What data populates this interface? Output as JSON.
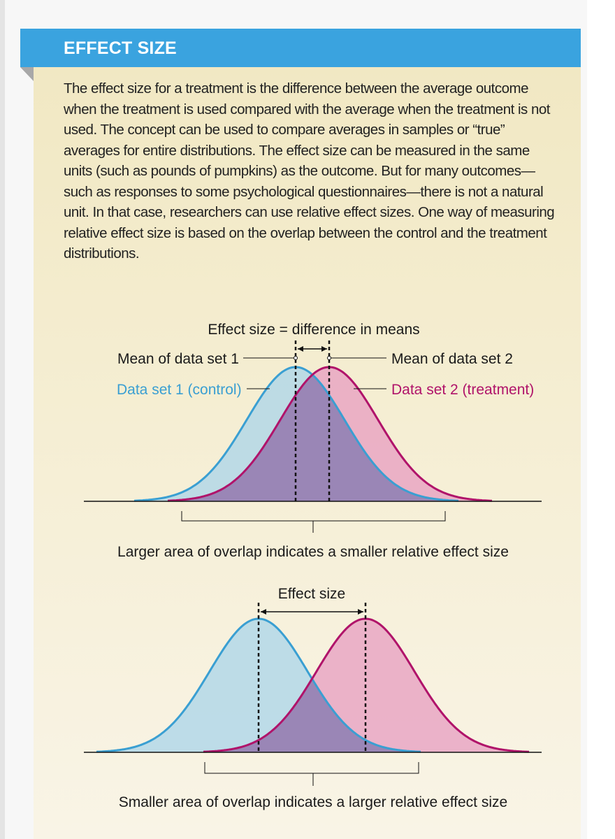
{
  "header": {
    "title": "EFFECT SIZE"
  },
  "intro_text": "The effect size for a treatment is the difference between the average outcome when the treatment is used compared with the average when the treatment is not used. The concept can be used to compare averages in samples or “true” averages for entire distributions. The effect size can be measured in the same units (such as pounds of pumpkins) as the outcome. But for many outcomes—such as responses to some psychological questionnaires—there is not a natural unit. In that case, researchers can use relative effect sizes. One way of measuring relative effect size is based on the overlap between the control and the treatment distributions.",
  "diagram1": {
    "effect_label": "Effect size = difference in means",
    "mean1_label": "Mean of data set 1",
    "mean2_label": "Mean  of data set 2",
    "set1_label": "Data set 1 (control)",
    "set2_label": "Data set 2 (treatment)",
    "caption": "Larger area of overlap indicates a smaller relative effect size"
  },
  "diagram2": {
    "effect_label": "Effect size",
    "caption": "Smaller area of overlap indicates a larger relative effect size"
  },
  "colors": {
    "header": "#3aa3df",
    "control": "#3a9fd2",
    "treatment": "#b0136a",
    "control_fill": "#a9d4ea",
    "treatment_fill": "#e79cc0",
    "overlap_fill": "#9a86b6"
  }
}
